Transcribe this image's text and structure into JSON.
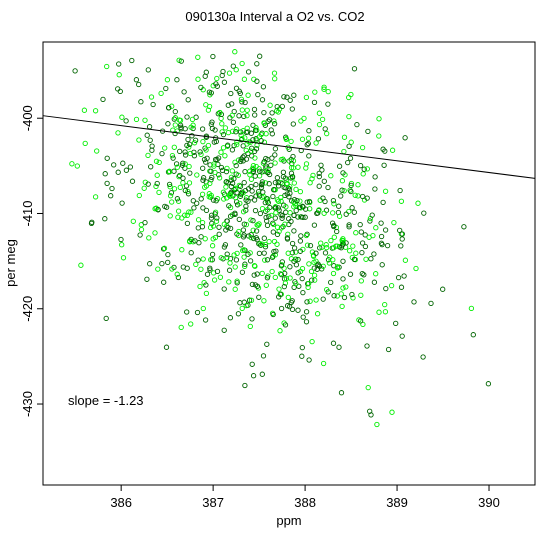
{
  "chart_data": {
    "type": "scatter",
    "title": "090130a   Interval a O2 vs. CO2",
    "xlabel": "ppm",
    "ylabel": "per meg",
    "xlim": [
      385.15,
      390.5
    ],
    "ylim": [
      -438.5,
      -392.0
    ],
    "x_ticks": [
      386,
      387,
      388,
      389,
      390
    ],
    "y_ticks": [
      -400,
      -410,
      -420,
      -430
    ],
    "x_tick_labels": [
      "386",
      "387",
      "388",
      "389",
      "390"
    ],
    "y_tick_labels": [
      "-400",
      "-410",
      "-420",
      "-430"
    ],
    "grid": false,
    "legend": "none",
    "annotation": "slope =  -1.23",
    "fit_line": {
      "slope": -1.23,
      "intercept": 74.0,
      "x_range": [
        385.15,
        390.5
      ]
    },
    "colors": {
      "dark_points": "#006400",
      "bright_points": "#00ee00",
      "line": "#000000"
    },
    "point_cloud": {
      "count": 1100,
      "center": [
        387.5,
        -408.0
      ],
      "spread": [
        0.75,
        7.0
      ],
      "correlation": -0.35,
      "x_range": [
        385.4,
        390.3
      ],
      "y_range": [
        -437.9,
        -393.0
      ]
    }
  }
}
